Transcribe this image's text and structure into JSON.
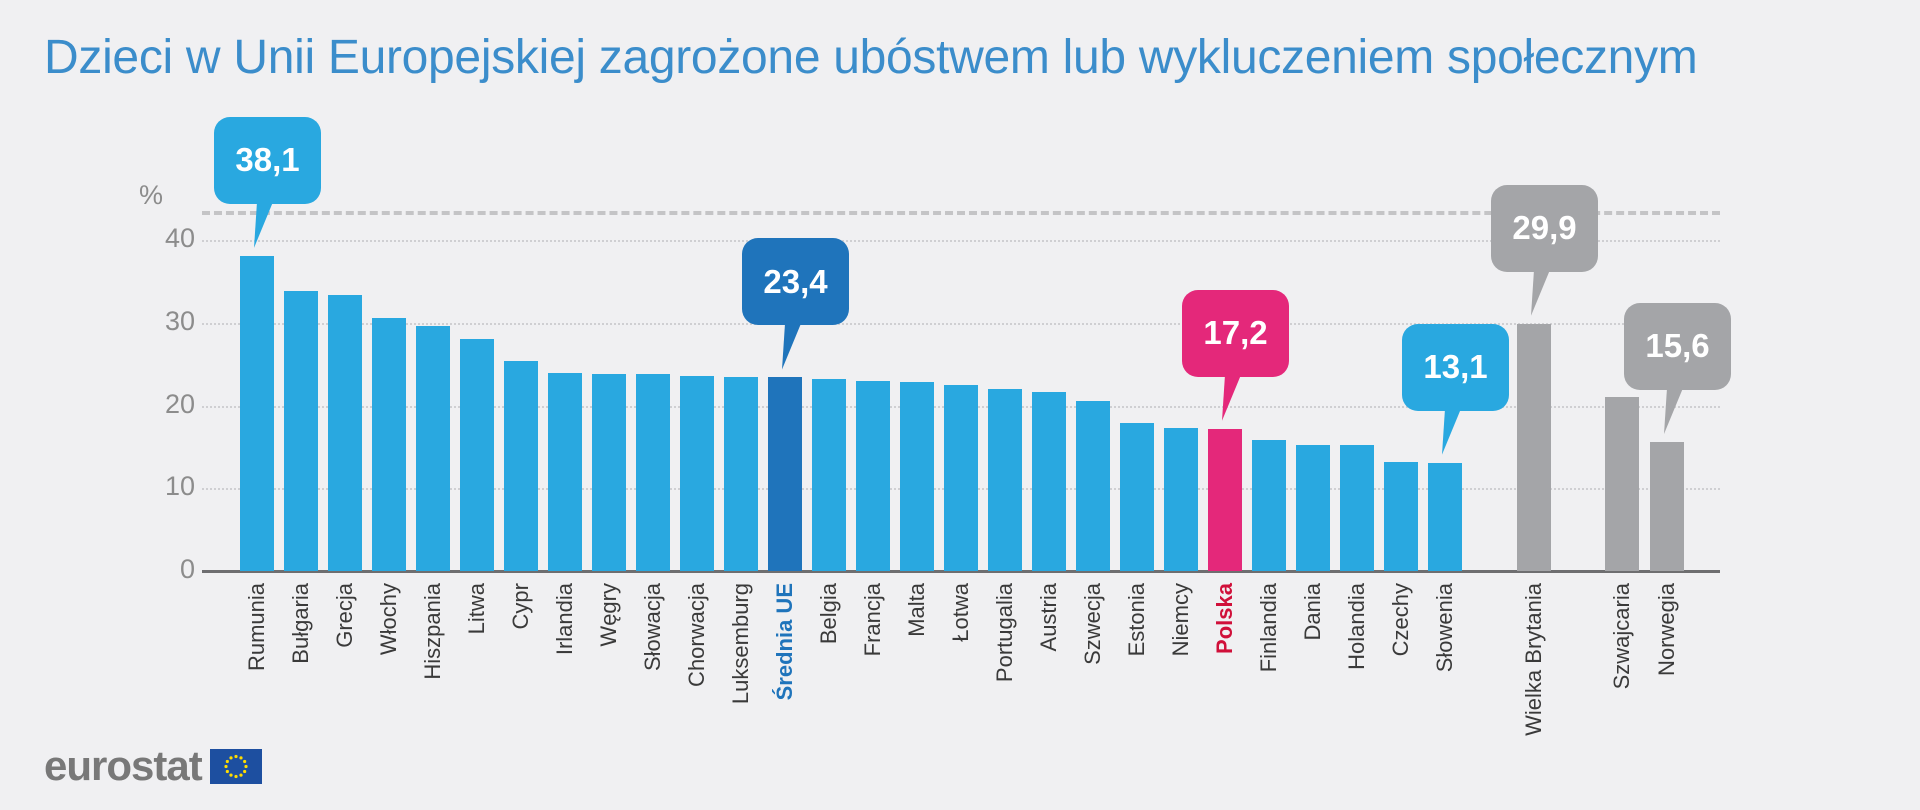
{
  "chart_data": {
    "type": "bar",
    "title": "Dzieci w Unii Europejskiej zagrożone ubóstwem lub wykluczeniem społecznym",
    "ylabel": "%",
    "ylim": [
      0,
      40
    ],
    "yticks": [
      "0",
      "10",
      "20",
      "30",
      "40"
    ],
    "grid": true,
    "categories": [
      "Rumunia",
      "Bułgaria",
      "Grecja",
      "Włochy",
      "Hiszpania",
      "Litwa",
      "Cypr",
      "Irlandia",
      "Węgry",
      "Słowacja",
      "Chorwacja",
      "Luksemburg",
      "Średnia UE",
      "Belgia",
      "Francja",
      "Malta",
      "Łotwa",
      "Portugalia",
      "Austria",
      "Szwecja",
      "Estonia",
      "Niemcy",
      "Polska",
      "Finlandia",
      "Dania",
      "Holandia",
      "Czechy",
      "Słowenia",
      "Wielka Brytania",
      "Szwajcaria",
      "Norwegia"
    ],
    "values": [
      38.1,
      33.8,
      33.4,
      30.6,
      29.6,
      28.0,
      25.4,
      24.0,
      23.8,
      23.8,
      23.6,
      23.5,
      23.4,
      23.2,
      23.0,
      22.8,
      22.5,
      22.0,
      21.6,
      20.6,
      17.9,
      17.3,
      17.2,
      15.9,
      15.2,
      15.2,
      13.2,
      13.1,
      29.9,
      21.0,
      15.6
    ],
    "bar_colors": {
      "eu": "#29a8e0",
      "eu_average": "#1f74bb",
      "poland": "#e4287a",
      "non_eu": "#a4a5a8"
    },
    "label_colors": {
      "eu_average": "#1f74bb",
      "poland": "#d0103a"
    },
    "callouts": [
      {
        "category": "Rumunia",
        "text": "38,1",
        "color": "#29a8e0"
      },
      {
        "category": "Średnia UE",
        "text": "23,4",
        "color": "#1f74bb"
      },
      {
        "category": "Polska",
        "text": "17,2",
        "color": "#e4287a"
      },
      {
        "category": "Słowenia",
        "text": "13,1",
        "color": "#29a8e0"
      },
      {
        "category": "Wielka Brytania",
        "text": "29,9",
        "color": "#a4a5a8"
      },
      {
        "category": "Norwegia",
        "text": "15,6",
        "color": "#a4a5a8"
      }
    ]
  },
  "logo": {
    "text": "eurostat",
    "icon": "eu-flag-icon"
  }
}
